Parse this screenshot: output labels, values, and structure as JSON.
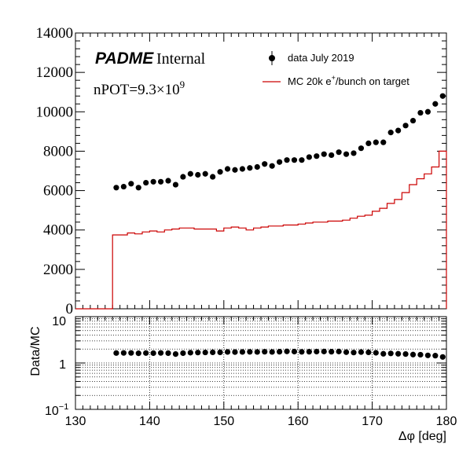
{
  "chart_data": [
    {
      "type": "scatter",
      "panel": "main",
      "title": "",
      "xlabel": "",
      "ylabel": "",
      "xlim": [
        130,
        180
      ],
      "ylim": [
        0,
        14000
      ],
      "yticks": [
        "0",
        "2000",
        "4000",
        "6000",
        "8000",
        "10000",
        "12000",
        "14000"
      ],
      "grid": false,
      "legend_position": "top-right",
      "annotations": {
        "brand": "PADME",
        "brand_suffix": "Internal",
        "npot_prefix": "nPOT=9.3×10",
        "npot_exp": "9"
      },
      "series": [
        {
          "name": "data July 2019",
          "style": "markers",
          "color": "#000000",
          "x": [
            135.5,
            136.5,
            137.5,
            138.5,
            139.5,
            140.5,
            141.5,
            142.5,
            143.5,
            144.5,
            145.5,
            146.5,
            147.5,
            148.5,
            149.5,
            150.5,
            151.5,
            152.5,
            153.5,
            154.5,
            155.5,
            156.5,
            157.5,
            158.5,
            159.5,
            160.5,
            161.5,
            162.5,
            163.5,
            164.5,
            165.5,
            166.5,
            167.5,
            168.5,
            169.5,
            170.5,
            171.5,
            172.5,
            173.5,
            174.5,
            175.5,
            176.5,
            177.5,
            178.5,
            179.5
          ],
          "y": [
            6150,
            6200,
            6350,
            6150,
            6400,
            6450,
            6450,
            6500,
            6300,
            6700,
            6850,
            6800,
            6850,
            6700,
            6950,
            7100,
            7050,
            7100,
            7150,
            7200,
            7350,
            7250,
            7450,
            7550,
            7550,
            7550,
            7700,
            7750,
            7850,
            7800,
            7950,
            7850,
            7900,
            8150,
            8400,
            8450,
            8450,
            8950,
            9050,
            9300,
            9550,
            9950,
            10000,
            10400,
            10800
          ]
        },
        {
          "name": "MC 20k e+/bunch on target",
          "style": "step",
          "color": "#cc0000",
          "bin_edges": [
            130,
            131,
            132,
            133,
            134,
            135,
            136,
            137,
            138,
            139,
            140,
            141,
            142,
            143,
            144,
            145,
            146,
            147,
            148,
            149,
            150,
            151,
            152,
            153,
            154,
            155,
            156,
            157,
            158,
            159,
            160,
            161,
            162,
            163,
            164,
            165,
            166,
            167,
            168,
            169,
            170,
            171,
            172,
            173,
            174,
            175,
            176,
            177,
            178,
            179,
            180
          ],
          "y": [
            0,
            0,
            0,
            0,
            0,
            3750,
            3750,
            3850,
            3800,
            3900,
            3950,
            3900,
            4000,
            4050,
            4100,
            4100,
            4050,
            4050,
            4050,
            3950,
            4100,
            4150,
            4100,
            4000,
            4100,
            4150,
            4200,
            4200,
            4250,
            4250,
            4300,
            4350,
            4400,
            4400,
            4450,
            4450,
            4500,
            4600,
            4700,
            4750,
            4950,
            5100,
            5350,
            5550,
            5900,
            6300,
            6600,
            6850,
            7200,
            8000
          ]
        }
      ],
      "legend": {
        "data_label": "data July 2019",
        "mc_label_pre": "MC 20k e",
        "mc_label_sup": "+",
        "mc_label_post": "/bunch on target"
      }
    },
    {
      "type": "scatter",
      "panel": "ratio",
      "xlabel": "Δφ [deg]",
      "ylabel": "Data/MC",
      "xlim": [
        130,
        180
      ],
      "ylim": [
        0.1,
        10
      ],
      "log_y": true,
      "grid": true,
      "xticks": [
        "130",
        "140",
        "150",
        "160",
        "170",
        "180"
      ],
      "yticks": {
        "base": "10",
        "minus_one": "−1",
        "one": "1",
        "ten": "10"
      },
      "series": [
        {
          "name": "Data/MC",
          "color": "#000000",
          "x": [
            135.5,
            136.5,
            137.5,
            138.5,
            139.5,
            140.5,
            141.5,
            142.5,
            143.5,
            144.5,
            145.5,
            146.5,
            147.5,
            148.5,
            149.5,
            150.5,
            151.5,
            152.5,
            153.5,
            154.5,
            155.5,
            156.5,
            157.5,
            158.5,
            159.5,
            160.5,
            161.5,
            162.5,
            163.5,
            164.5,
            165.5,
            166.5,
            167.5,
            168.5,
            169.5,
            170.5,
            171.5,
            172.5,
            173.5,
            174.5,
            175.5,
            176.5,
            177.5,
            178.5,
            179.5
          ],
          "y": [
            1.64,
            1.65,
            1.65,
            1.62,
            1.64,
            1.63,
            1.65,
            1.63,
            1.56,
            1.63,
            1.67,
            1.68,
            1.69,
            1.7,
            1.7,
            1.73,
            1.72,
            1.73,
            1.74,
            1.73,
            1.75,
            1.73,
            1.75,
            1.78,
            1.76,
            1.74,
            1.75,
            1.76,
            1.77,
            1.75,
            1.77,
            1.71,
            1.68,
            1.72,
            1.7,
            1.66,
            1.58,
            1.61,
            1.58,
            1.56,
            1.52,
            1.51,
            1.46,
            1.44,
            1.35
          ]
        }
      ]
    }
  ]
}
